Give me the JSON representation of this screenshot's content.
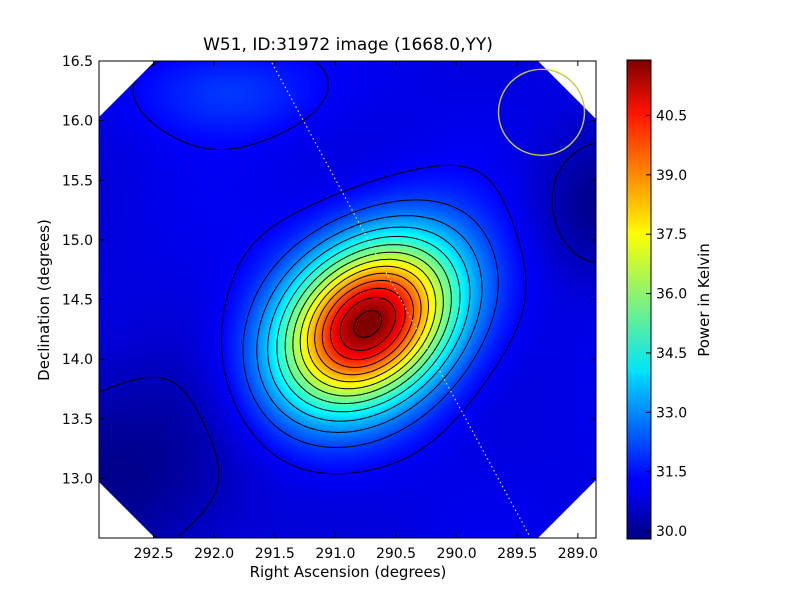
{
  "chart_data": {
    "type": "heatmap",
    "title": "W51, ID:31972 image (1668.0,YY)",
    "xlabel": "Right Ascension (degrees)",
    "ylabel": "Declination (degrees)",
    "xlim": [
      292.95,
      288.85
    ],
    "ylim": [
      12.5,
      16.5
    ],
    "x_ticks": [
      "292.5",
      "292.0",
      "291.5",
      "291.0",
      "290.5",
      "290.0",
      "289.5",
      "289.0"
    ],
    "x_tick_values": [
      292.5,
      292.0,
      291.5,
      291.0,
      290.5,
      290.0,
      289.5,
      289.0
    ],
    "y_ticks": [
      "13.0",
      "13.5",
      "14.0",
      "14.5",
      "15.0",
      "15.5",
      "16.0",
      "16.5"
    ],
    "y_tick_values": [
      13.0,
      13.5,
      14.0,
      14.5,
      15.0,
      15.5,
      16.0,
      16.5
    ],
    "colorbar": {
      "label": "Power in Kelvin",
      "range": [
        29.8,
        41.9
      ],
      "ticks": [
        "30.0",
        "31.5",
        "33.0",
        "34.5",
        "36.0",
        "37.5",
        "39.0",
        "40.5"
      ],
      "tick_values": [
        30.0,
        31.5,
        33.0,
        34.5,
        36.0,
        37.5,
        39.0,
        40.5
      ],
      "colormap": "jet"
    },
    "peak": {
      "ra": 290.73,
      "dec": 14.3,
      "value": 41.9
    },
    "background_level": 31.0,
    "contours": "black, approx. every 0.8 K",
    "beam_circle": {
      "ra": 289.3,
      "dec": 16.07,
      "color": "#c8c84a"
    },
    "scan_track_color": "#dcdcdc",
    "masked_corners_color": "#ffffff"
  }
}
